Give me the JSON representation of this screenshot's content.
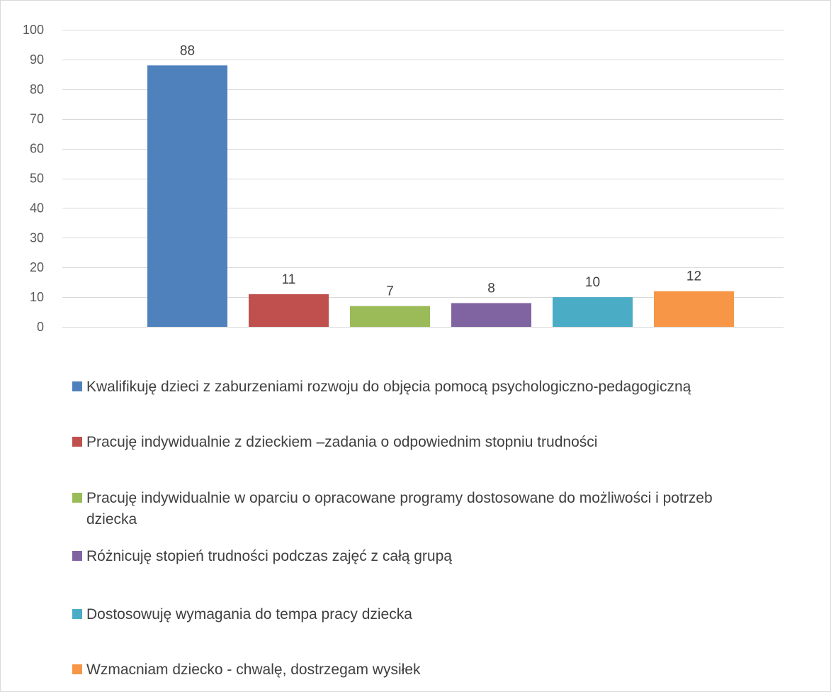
{
  "chart_data": {
    "type": "bar",
    "ylim": [
      0,
      100
    ],
    "yticks": [
      0,
      10,
      20,
      30,
      40,
      50,
      60,
      70,
      80,
      90,
      100
    ],
    "grid": true,
    "legend_position": "bottom",
    "series": [
      {
        "name": "Kwalifikuję dzieci z zaburzeniami rozwoju do objęcia pomocą psychologiczno-pedagogiczną",
        "value": 88,
        "color": "#4f81bd"
      },
      {
        "name": "Pracuję indywidualnie z dzieckiem –zadania o odpowiednim stopniu trudności",
        "value": 11,
        "color": "#c0504d"
      },
      {
        "name": "Pracuję indywidualnie w oparciu o opracowane programy dostosowane do możliwości i potrzeb dziecka",
        "value": 7,
        "color": "#9bbb59"
      },
      {
        "name": "Różnicuję stopień trudności podczas zajęć z całą grupą",
        "value": 8,
        "color": "#8064a2"
      },
      {
        "name": "Dostosowuję wymagania do tempa pracy dziecka",
        "value": 10,
        "color": "#4bacc6"
      },
      {
        "name": "Wzmacniam dziecko - chwalę, dostrzegam wysiłek",
        "value": 12,
        "color": "#f79646"
      }
    ]
  }
}
